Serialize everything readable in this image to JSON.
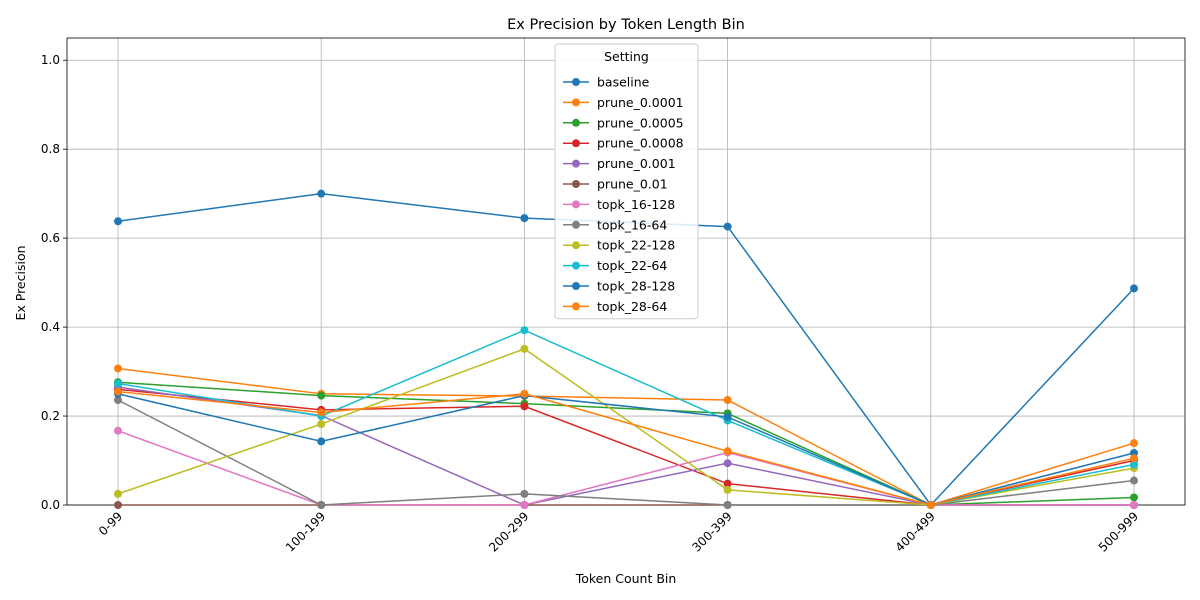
{
  "chart_data": {
    "type": "line",
    "title": "Ex Precision by Token Length Bin",
    "xlabel": "Token Count Bin",
    "ylabel": "Ex Precision",
    "categories": [
      "0-99",
      "100-199",
      "200-299",
      "300-399",
      "400-499",
      "500-999"
    ],
    "ylim": [
      0,
      1.05
    ],
    "yticks": [
      "0.0",
      "0.2",
      "0.4",
      "0.6",
      "0.8",
      "1.0"
    ],
    "grid": true,
    "legend": {
      "title": "Setting",
      "placement": "top-center"
    },
    "series": [
      {
        "name": "baseline",
        "color": "#1f77b4",
        "values": [
          0.638,
          0.7,
          0.645,
          0.626,
          0.0,
          0.487
        ]
      },
      {
        "name": "prune_0.0001",
        "color": "#ff7f0e",
        "values": [
          0.307,
          0.25,
          0.245,
          0.236,
          0.0,
          0.139
        ]
      },
      {
        "name": "prune_0.0005",
        "color": "#2ca02c",
        "values": [
          0.276,
          0.246,
          0.228,
          0.206,
          0.0,
          0.017
        ]
      },
      {
        "name": "prune_0.0008",
        "color": "#d62728",
        "values": [
          0.26,
          0.214,
          0.222,
          0.048,
          0.0,
          0.1
        ]
      },
      {
        "name": "prune_0.001",
        "color": "#9467bd",
        "values": [
          0.265,
          0.201,
          0.0,
          0.094,
          0.0,
          0.0
        ]
      },
      {
        "name": "prune_0.01",
        "color": "#8c564b",
        "values": [
          0.0,
          0.0,
          0.0,
          0.0,
          0.0,
          0.0
        ]
      },
      {
        "name": "topk_16-128",
        "color": "#e377c2",
        "values": [
          0.167,
          0.0,
          0.0,
          0.118,
          0.0,
          0.0
        ]
      },
      {
        "name": "topk_16-64",
        "color": "#7f7f7f",
        "values": [
          0.236,
          0.0,
          0.025,
          0.0,
          0.0,
          0.055
        ]
      },
      {
        "name": "topk_22-128",
        "color": "#bcbd22",
        "values": [
          0.025,
          0.182,
          0.351,
          0.034,
          0.0,
          0.083
        ]
      },
      {
        "name": "topk_22-64",
        "color": "#17becf",
        "values": [
          0.273,
          0.2,
          0.393,
          0.19,
          0.0,
          0.091
        ]
      },
      {
        "name": "topk_28-128",
        "color": "#1f77b4",
        "values": [
          0.25,
          0.143,
          0.246,
          0.198,
          0.0,
          0.117
        ]
      },
      {
        "name": "topk_28-64",
        "color": "#ff7f0e",
        "values": [
          0.255,
          0.208,
          0.25,
          0.121,
          0.0,
          0.105
        ]
      }
    ]
  }
}
